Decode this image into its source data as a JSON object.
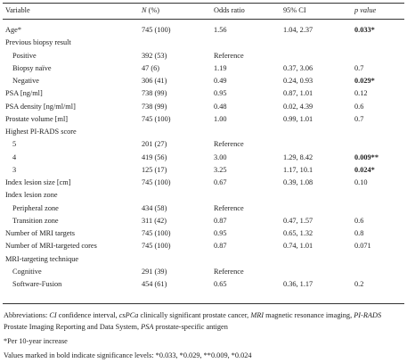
{
  "table": {
    "header": {
      "variable": "Variable",
      "n": "N",
      "n_suffix": "(%)",
      "or": "Odds ratio",
      "ci": "95% CI",
      "p": "p value"
    },
    "rows": [
      {
        "variable": "Age*",
        "n": "745 (100)",
        "or": "1.56",
        "ci": "1.04, 2.37",
        "p": "0.033*",
        "bold_p": true
      },
      {
        "variable": "Previous biopsy result"
      },
      {
        "variable": "Positive",
        "indent": true,
        "n": "392 (53)",
        "or": "Reference"
      },
      {
        "variable": "Biopsy naïve",
        "indent": true,
        "n": "47 (6)",
        "or": "1.19",
        "ci": "0.37, 3.06",
        "p": "0.7"
      },
      {
        "variable": "Negative",
        "indent": true,
        "n": "306 (41)",
        "or": "0.49",
        "ci": "0.24, 0.93",
        "p": "0.029*",
        "bold_p": true
      },
      {
        "variable": "PSA [ng/ml]",
        "n": "738 (99)",
        "or": "0.95",
        "ci": "0.87, 1.01",
        "p": "0.12"
      },
      {
        "variable": "PSA density [ng/ml/ml]",
        "n": "738 (99)",
        "or": "0.48",
        "ci": "0.02, 4.39",
        "p": "0.6"
      },
      {
        "variable": "Prostate volume [ml]",
        "n": "745 (100)",
        "or": "1.00",
        "ci": "0.99, 1.01",
        "p": "0.7"
      },
      {
        "variable": "Highest PI-RADS score"
      },
      {
        "variable": "5",
        "indent": true,
        "n": "201 (27)",
        "or": "Reference"
      },
      {
        "variable": "4",
        "indent": true,
        "n": "419 (56)",
        "or": "3.00",
        "ci": "1.29, 8.42",
        "p": "0.009**",
        "bold_p": true
      },
      {
        "variable": "3",
        "indent": true,
        "n": "125 (17)",
        "or": "3.25",
        "ci": "1.17, 10.1",
        "p": "0.024*",
        "bold_p": true
      },
      {
        "variable": "Index lesion size [cm]",
        "n": "745 (100)",
        "or": "0.67",
        "ci": "0.39, 1.08",
        "p": "0.10"
      },
      {
        "variable": "Index lesion zone"
      },
      {
        "variable": "Peripheral zone",
        "indent": true,
        "n": "434 (58)",
        "or": "Reference"
      },
      {
        "variable": "Transition zone",
        "indent": true,
        "n": "311 (42)",
        "or": "0.87",
        "ci": "0.47, 1.57",
        "p": "0.6"
      },
      {
        "variable": "Number of MRI targets",
        "n": "745 (100)",
        "or": "0.95",
        "ci": "0.65, 1.32",
        "p": "0.8"
      },
      {
        "variable": "Number of MRI-targeted cores",
        "n": "745 (100)",
        "or": "0.87",
        "ci": "0.74, 1.01",
        "p": "0.071"
      },
      {
        "variable": "MRI-targeting technique"
      },
      {
        "variable": "Cognitive",
        "indent": true,
        "n": "291 (39)",
        "or": "Reference"
      },
      {
        "variable": "Software-Fusion",
        "indent": true,
        "n": "454 (61)",
        "or": "0.65",
        "ci": "0.36, 1.17",
        "p": "0.2"
      }
    ]
  },
  "footnotes": {
    "abbreviations_label": "Abbreviations:",
    "abbreviations": [
      {
        "abbr": "CI",
        "def": "confidence interval,"
      },
      {
        "abbr": "csPCa",
        "def": "clinically significant prostate cancer,"
      },
      {
        "abbr": "MRI",
        "def": "magnetic resonance imaging,"
      },
      {
        "abbr": "PI-RADS",
        "def": "Prostate Imaging Reporting and Data System,"
      },
      {
        "abbr": "PSA",
        "def": "prostate-specific antigen"
      }
    ],
    "note_1": "*Per 10-year increase",
    "note_2": "Values marked in bold indicate significance levels: *0.033, *0.029, **0.009, *0.024"
  }
}
